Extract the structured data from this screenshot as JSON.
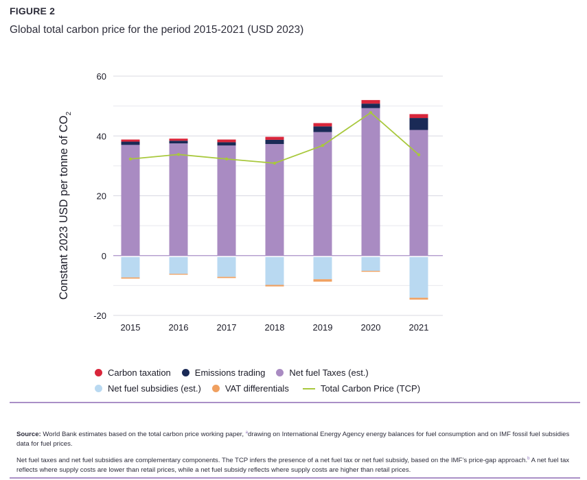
{
  "figure": {
    "label": "FIGURE 2",
    "title": "Global total carbon price for the period 2015-2021 (USD 2023)"
  },
  "chart_data": {
    "type": "bar",
    "stacked": true,
    "categories": [
      "2015",
      "2016",
      "2017",
      "2018",
      "2019",
      "2020",
      "2021"
    ],
    "ylabel": "Constant 2023 USD per tonne of CO",
    "ylabel_sub": "2",
    "ylim": [
      -20,
      60
    ],
    "yticks": [
      -20,
      0,
      20,
      40,
      60
    ],
    "grid": true,
    "legend_position": "bottom",
    "series": [
      {
        "name": "Net fuel Taxes (est.)",
        "color": "#a98bc2",
        "values": [
          37.0,
          37.5,
          36.8,
          37.3,
          41.3,
          49.3,
          42.0
        ]
      },
      {
        "name": "Emissions trading",
        "color": "#1a2a56",
        "values": [
          1.1,
          0.9,
          1.1,
          1.4,
          1.9,
          1.5,
          4.0
        ]
      },
      {
        "name": "Carbon taxation",
        "color": "#d9263b",
        "values": [
          0.7,
          0.7,
          0.9,
          1.0,
          1.1,
          1.2,
          1.3
        ]
      },
      {
        "name": "Net fuel subsidies (est.)",
        "color": "#b9d9f1",
        "values": [
          -6.8,
          -5.6,
          -6.6,
          -9.3,
          -7.4,
          -4.6,
          -13.6
        ]
      },
      {
        "name": "VAT differentials",
        "color": "#f0a060",
        "values": [
          -0.4,
          -0.3,
          -0.4,
          -0.5,
          -0.8,
          -0.3,
          -0.6
        ]
      }
    ],
    "line_series": {
      "name": "Total Carbon Price (TCP)",
      "color": "#a8c83c",
      "values": [
        32.3,
        33.8,
        32.3,
        30.9,
        36.8,
        47.8,
        33.7
      ]
    }
  },
  "legend": {
    "row1": [
      {
        "label": "Carbon taxation",
        "color": "#d9263b",
        "kind": "dot"
      },
      {
        "label": "Emissions trading",
        "color": "#1a2a56",
        "kind": "dot"
      },
      {
        "label": "Net fuel Taxes (est.)",
        "color": "#a98bc2",
        "kind": "dot"
      }
    ],
    "row2": [
      {
        "label": "Net fuel subsidies (est.)",
        "color": "#b9d9f1",
        "kind": "dot"
      },
      {
        "label": "VAT differentials",
        "color": "#f0a060",
        "kind": "dot"
      },
      {
        "label": "Total Carbon Price (TCP)",
        "color": "#a8c83c",
        "kind": "line"
      }
    ]
  },
  "footnotes": {
    "source_label": "Source:",
    "source_text_1": " World Bank estimates based on the total carbon price working paper, ",
    "source_ref_a": "a",
    "source_text_2": "drawing on International Energy Agency energy balances for fuel consumption and on IMF fossil fuel subsidies data for fuel prices.",
    "note_text_1": "Net fuel taxes and net fuel subsidies are complementary components. The TCP infers the presence of a net fuel tax or net fuel subsidy, based on the IMF’s price-gap approach.",
    "note_ref_b": "b",
    "note_text_2": " A net fuel tax reflects where supply costs are lower than retail prices, while a net fuel subsidy reflects where supply costs are higher than retail prices."
  }
}
